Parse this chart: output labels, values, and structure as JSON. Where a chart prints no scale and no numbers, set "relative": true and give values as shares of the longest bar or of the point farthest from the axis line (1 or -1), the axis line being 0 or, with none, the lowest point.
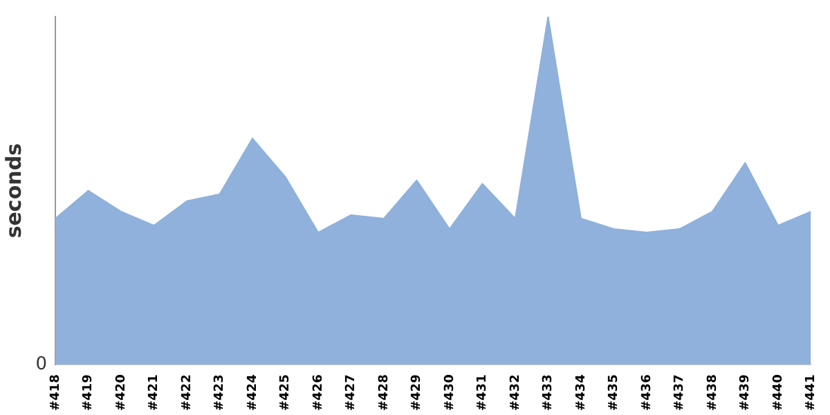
{
  "chart_data": {
    "type": "area",
    "ylabel": "seconds",
    "relative": true,
    "grid": false,
    "legend": false,
    "categories": [
      "#418",
      "#419",
      "#420",
      "#421",
      "#422",
      "#423",
      "#424",
      "#425",
      "#426",
      "#427",
      "#428",
      "#429",
      "#430",
      "#431",
      "#432",
      "#433",
      "#434",
      "#435",
      "#436",
      "#437",
      "#438",
      "#439",
      "#440",
      "#441"
    ],
    "series": [
      {
        "color": "#8fb1db",
        "values": [
          0.42,
          0.5,
          0.44,
          0.4,
          0.47,
          0.49,
          0.65,
          0.54,
          0.38,
          0.43,
          0.42,
          0.53,
          0.39,
          0.52,
          0.42,
          1,
          0.42,
          0.39,
          0.38,
          0.39,
          0.44,
          0.58,
          0.4,
          0.44
        ]
      }
    ],
    "annotations": [
      "0"
    ]
  }
}
